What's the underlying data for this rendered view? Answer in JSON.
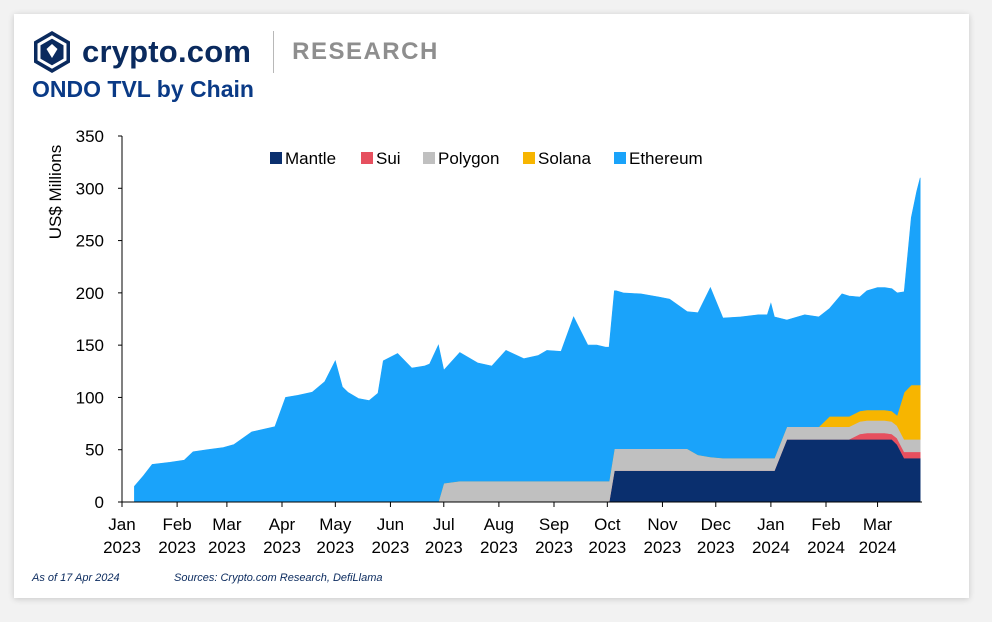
{
  "brand": {
    "name": "crypto.com",
    "section": "RESEARCH"
  },
  "title": "ONDO TVL by Chain",
  "footer": {
    "as_of": "As of 17 Apr 2024",
    "sources": "Sources: Crypto.com Research, DefiLlama"
  },
  "colors": {
    "Mantle": "#0a2f6e",
    "Sui": "#e6505f",
    "Polygon": "#c0c0c0",
    "Solana": "#f7b500",
    "Ethereum": "#1aa3fa"
  },
  "chart_data": {
    "type": "area",
    "stacked": true,
    "ylabel": "US$ Millions",
    "xlabel": "",
    "ylim": [
      0,
      350
    ],
    "yticks": [
      0,
      50,
      100,
      150,
      200,
      250,
      300,
      350
    ],
    "xlim": [
      "2023-01-01",
      "2024-03-26"
    ],
    "xticks": [
      {
        "date": "2023-01-01",
        "label": [
          "Jan",
          "2023"
        ]
      },
      {
        "date": "2023-02-01",
        "label": [
          "Feb",
          "2023"
        ]
      },
      {
        "date": "2023-03-01",
        "label": [
          "Mar",
          "2023"
        ]
      },
      {
        "date": "2023-04-01",
        "label": [
          "Apr",
          "2023"
        ]
      },
      {
        "date": "2023-05-01",
        "label": [
          "May",
          "2023"
        ]
      },
      {
        "date": "2023-06-01",
        "label": [
          "Jun",
          "2023"
        ]
      },
      {
        "date": "2023-07-01",
        "label": [
          "Jul",
          "2023"
        ]
      },
      {
        "date": "2023-08-01",
        "label": [
          "Aug",
          "2023"
        ]
      },
      {
        "date": "2023-09-01",
        "label": [
          "Sep",
          "2023"
        ]
      },
      {
        "date": "2023-10-01",
        "label": [
          "Oct",
          "2023"
        ]
      },
      {
        "date": "2023-11-01",
        "label": [
          "Nov",
          "2023"
        ]
      },
      {
        "date": "2023-12-01",
        "label": [
          "Dec",
          "2023"
        ]
      },
      {
        "date": "2024-01-01",
        "label": [
          "Jan",
          "2024"
        ]
      },
      {
        "date": "2024-02-01",
        "label": [
          "Feb",
          "2024"
        ]
      },
      {
        "date": "2024-03-01",
        "label": [
          "Mar",
          "2024"
        ]
      }
    ],
    "legend_position": "top",
    "legend": [
      "Mantle",
      "Sui",
      "Polygon",
      "Solana",
      "Ethereum"
    ],
    "x": [
      "2023-01-08",
      "2023-01-13",
      "2023-01-18",
      "2023-01-28",
      "2023-02-05",
      "2023-02-10",
      "2023-02-18",
      "2023-02-27",
      "2023-03-05",
      "2023-03-15",
      "2023-03-28",
      "2023-04-03",
      "2023-04-10",
      "2023-04-18",
      "2023-04-25",
      "2023-05-01",
      "2023-05-05",
      "2023-05-08",
      "2023-05-14",
      "2023-05-20",
      "2023-05-25",
      "2023-05-28",
      "2023-06-05",
      "2023-06-13",
      "2023-06-20",
      "2023-06-23",
      "2023-06-28",
      "2023-07-01",
      "2023-07-10",
      "2023-07-20",
      "2023-07-28",
      "2023-08-05",
      "2023-08-15",
      "2023-08-23",
      "2023-08-28",
      "2023-09-05",
      "2023-09-12",
      "2023-09-20",
      "2023-09-25",
      "2023-09-30",
      "2023-10-02",
      "2023-10-05",
      "2023-10-06",
      "2023-10-10",
      "2023-10-20",
      "2023-10-30",
      "2023-11-05",
      "2023-11-15",
      "2023-11-21",
      "2023-11-28",
      "2023-12-05",
      "2023-12-15",
      "2023-12-25",
      "2023-12-30",
      "2024-01-01",
      "2024-01-03",
      "2024-01-10",
      "2024-01-20",
      "2024-01-28",
      "2024-02-03",
      "2024-02-10",
      "2024-02-14",
      "2024-02-20",
      "2024-02-24",
      "2024-03-01",
      "2024-03-05",
      "2024-03-09",
      "2024-03-12",
      "2024-03-16",
      "2024-03-20",
      "2024-03-23",
      "2024-03-25"
    ],
    "series": [
      {
        "name": "Mantle",
        "values": [
          0,
          0,
          0,
          0,
          0,
          0,
          0,
          0,
          0,
          0,
          0,
          0,
          0,
          0,
          0,
          0,
          0,
          0,
          0,
          0,
          0,
          0,
          0,
          0,
          0,
          0,
          0,
          0,
          0,
          0,
          0,
          0,
          0,
          0,
          0,
          0,
          0,
          0,
          0,
          0,
          0,
          30,
          30,
          30,
          30,
          30,
          30,
          30,
          30,
          30,
          30,
          30,
          30,
          30,
          30,
          30,
          60,
          60,
          60,
          60,
          60,
          60,
          60,
          60,
          60,
          60,
          60,
          55,
          42,
          42,
          42,
          42
        ]
      },
      {
        "name": "Sui",
        "values": [
          0,
          0,
          0,
          0,
          0,
          0,
          0,
          0,
          0,
          0,
          0,
          0,
          0,
          0,
          0,
          0,
          0,
          0,
          0,
          0,
          0,
          0,
          0,
          0,
          0,
          0,
          0,
          0,
          0,
          0,
          0,
          0,
          0,
          0,
          0,
          0,
          0,
          0,
          0,
          0,
          0,
          0,
          0,
          0,
          0,
          0,
          0,
          0,
          0,
          0,
          0,
          0,
          0,
          0,
          0,
          0,
          0,
          0,
          0,
          0,
          0,
          0,
          5,
          6,
          6,
          6,
          5,
          6,
          6,
          6,
          6,
          6
        ]
      },
      {
        "name": "Polygon",
        "values": [
          0,
          0,
          0,
          0,
          0,
          0,
          0,
          0,
          0,
          0,
          0,
          0,
          0,
          0,
          0,
          0,
          0,
          0,
          0,
          0,
          0,
          0,
          0,
          0,
          0,
          0,
          0,
          18,
          20,
          20,
          20,
          20,
          20,
          20,
          20,
          20,
          20,
          20,
          20,
          20,
          20,
          21,
          21,
          21,
          21,
          21,
          21,
          21,
          15,
          13,
          12,
          12,
          12,
          12,
          12,
          12,
          12,
          12,
          12,
          12,
          12,
          12,
          12,
          12,
          12,
          12,
          12,
          12,
          12,
          12,
          12,
          12
        ]
      },
      {
        "name": "Solana",
        "values": [
          0,
          0,
          0,
          0,
          0,
          0,
          0,
          0,
          0,
          0,
          0,
          0,
          0,
          0,
          0,
          0,
          0,
          0,
          0,
          0,
          0,
          0,
          0,
          0,
          0,
          0,
          0,
          0,
          0,
          0,
          0,
          0,
          0,
          0,
          0,
          0,
          0,
          0,
          0,
          0,
          0,
          0,
          0,
          0,
          0,
          0,
          0,
          0,
          0,
          0,
          0,
          0,
          0,
          0,
          0,
          0,
          0,
          0,
          0,
          10,
          10,
          10,
          10,
          10,
          10,
          10,
          10,
          10,
          45,
          52,
          52,
          52
        ]
      },
      {
        "name": "Ethereum",
        "values": [
          15,
          25,
          36,
          38,
          40,
          48,
          50,
          52,
          55,
          67,
          72,
          100,
          102,
          105,
          115,
          135,
          110,
          105,
          99,
          97,
          104,
          135,
          142,
          128,
          130,
          132,
          150,
          108,
          123,
          113,
          110,
          125,
          117,
          120,
          125,
          124,
          157,
          130,
          130,
          128,
          128,
          151,
          151,
          149,
          148,
          145,
          143,
          131,
          136,
          162,
          134,
          135,
          137,
          137,
          148,
          135,
          102,
          107,
          105,
          103,
          117,
          115,
          109,
          114,
          117,
          117,
          117,
          117,
          96,
          160,
          185,
          198
        ]
      }
    ]
  }
}
